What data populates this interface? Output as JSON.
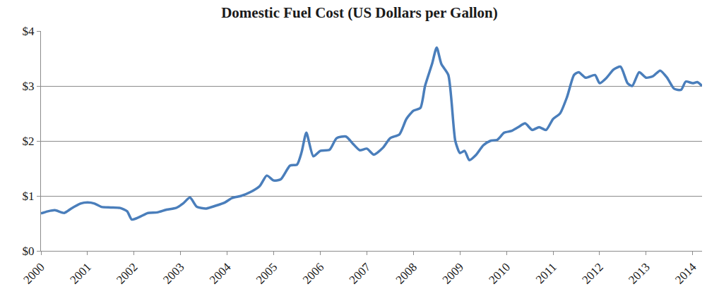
{
  "chart_data": {
    "type": "line",
    "title": "Domestic Fuel Cost (US Dollars per Gallon)",
    "x": [
      2000.0,
      2000.15,
      2000.3,
      2000.5,
      2000.65,
      2000.85,
      2001.0,
      2001.15,
      2001.3,
      2001.5,
      2001.7,
      2001.85,
      2001.95,
      2002.1,
      2002.3,
      2002.5,
      2002.7,
      2002.9,
      2003.05,
      2003.2,
      2003.35,
      2003.55,
      2003.75,
      2003.95,
      2004.1,
      2004.3,
      2004.5,
      2004.7,
      2004.85,
      2005.0,
      2005.15,
      2005.35,
      2005.5,
      2005.6,
      2005.7,
      2005.85,
      2006.0,
      2006.2,
      2006.35,
      2006.55,
      2006.7,
      2006.85,
      2007.0,
      2007.15,
      2007.35,
      2007.5,
      2007.7,
      2007.85,
      2008.0,
      2008.15,
      2008.25,
      2008.4,
      2008.5,
      2008.6,
      2008.75,
      2008.9,
      2009.0,
      2009.1,
      2009.2,
      2009.35,
      2009.5,
      2009.65,
      2009.8,
      2009.95,
      2010.1,
      2010.25,
      2010.4,
      2010.55,
      2010.7,
      2010.85,
      2011.0,
      2011.15,
      2011.3,
      2011.45,
      2011.55,
      2011.7,
      2011.9,
      2012.0,
      2012.15,
      2012.3,
      2012.45,
      2012.6,
      2012.7,
      2012.85,
      2013.0,
      2013.15,
      2013.3,
      2013.45,
      2013.6,
      2013.75,
      2013.85,
      2014.0,
      2014.1,
      2014.2
    ],
    "values": [
      0.68,
      0.72,
      0.74,
      0.69,
      0.77,
      0.86,
      0.88,
      0.86,
      0.8,
      0.79,
      0.78,
      0.72,
      0.57,
      0.61,
      0.69,
      0.7,
      0.75,
      0.78,
      0.86,
      0.97,
      0.8,
      0.77,
      0.82,
      0.88,
      0.96,
      1.0,
      1.07,
      1.18,
      1.37,
      1.28,
      1.3,
      1.55,
      1.57,
      1.8,
      2.15,
      1.72,
      1.82,
      1.84,
      2.05,
      2.08,
      1.95,
      1.83,
      1.86,
      1.75,
      1.88,
      2.05,
      2.12,
      2.4,
      2.55,
      2.6,
      3.0,
      3.4,
      3.7,
      3.4,
      3.2,
      2.0,
      1.78,
      1.82,
      1.65,
      1.75,
      1.92,
      2.0,
      2.02,
      2.15,
      2.18,
      2.25,
      2.32,
      2.2,
      2.25,
      2.2,
      2.4,
      2.5,
      2.8,
      3.2,
      3.25,
      3.15,
      3.2,
      3.05,
      3.15,
      3.3,
      3.35,
      3.05,
      3.0,
      3.25,
      3.15,
      3.18,
      3.28,
      3.15,
      2.95,
      2.93,
      3.08,
      3.05,
      3.07,
      3.0
    ],
    "color": "#4a7ebb",
    "xlim": [
      2000,
      2014.2
    ],
    "xticks": [
      2000,
      2001,
      2002,
      2003,
      2004,
      2005,
      2006,
      2007,
      2008,
      2009,
      2010,
      2011,
      2012,
      2013,
      2014
    ],
    "ylim": [
      0,
      4
    ],
    "yticks": [
      {
        "value": 0,
        "label": "$0"
      },
      {
        "value": 1,
        "label": "$1"
      },
      {
        "value": 2,
        "label": "$2"
      },
      {
        "value": 3,
        "label": "$3"
      },
      {
        "value": 4,
        "label": "$4"
      }
    ],
    "grid": true
  }
}
